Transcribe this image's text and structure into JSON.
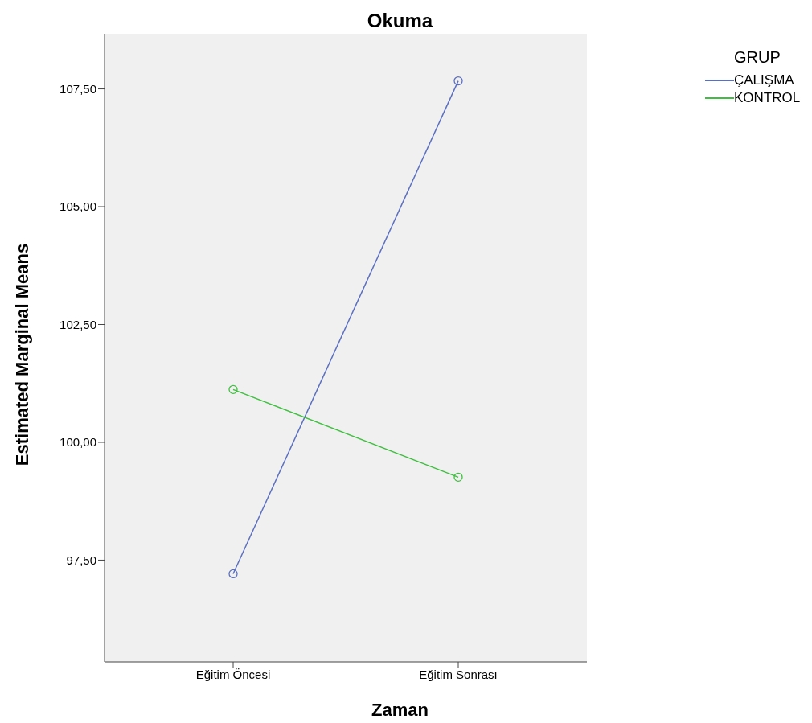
{
  "chart_data": {
    "type": "line",
    "title": "Okuma",
    "xlabel": "Zaman",
    "ylabel": "Estimated Marginal Means",
    "legend_title": "GRUP",
    "categories": [
      "Eğitim Öncesi",
      "Eğitim Sonrası"
    ],
    "series": [
      {
        "name": "ÇALIŞMA",
        "color": "#5b6fbf",
        "values": [
          97.21,
          107.67
        ]
      },
      {
        "name": "KONTROL",
        "color": "#3fbf3f",
        "values": [
          101.12,
          99.26
        ]
      }
    ],
    "ylim": [
      95.34,
      108.67
    ],
    "yticks": [
      {
        "value": 97.5,
        "label": "97,50"
      },
      {
        "value": 100,
        "label": "100,00"
      },
      {
        "value": 102.5,
        "label": "102,50"
      },
      {
        "value": 105,
        "label": "105,00"
      },
      {
        "value": 107.5,
        "label": "107,50"
      }
    ],
    "grid": false,
    "legend": "top right",
    "marker": "circle",
    "line_style": "solid"
  }
}
